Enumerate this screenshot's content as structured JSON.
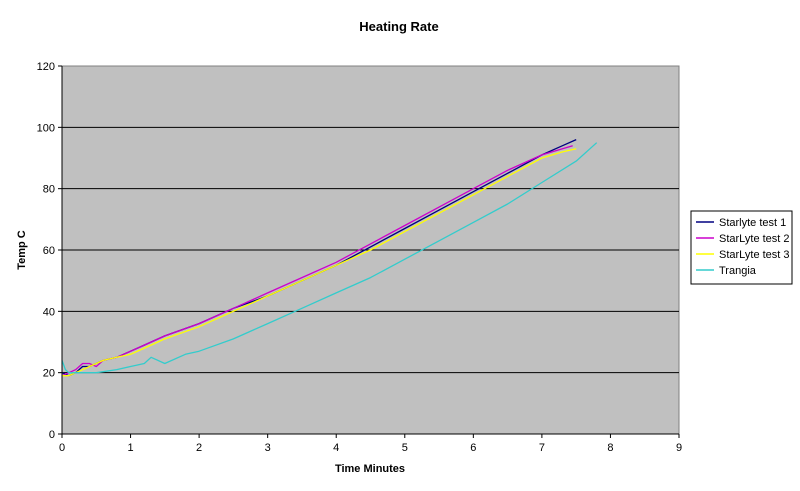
{
  "chart_data": {
    "type": "line",
    "title": "Heating Rate",
    "xlabel": "Time Minutes",
    "ylabel": "Temp C",
    "xlim": [
      0,
      9
    ],
    "ylim": [
      0,
      120
    ],
    "xticks": [
      0,
      1,
      2,
      3,
      4,
      5,
      6,
      7,
      8,
      9
    ],
    "yticks": [
      0,
      20,
      40,
      60,
      80,
      100,
      120
    ],
    "grid": "horizontal",
    "plot_background": "#c0c0c0",
    "legend_position": "right",
    "series": [
      {
        "name": "Starlyte test 1",
        "color": "#000080",
        "x": [
          0,
          0.1,
          0.2,
          0.3,
          0.4,
          0.5,
          0.6,
          0.8,
          1.0,
          1.2,
          1.5,
          2.0,
          2.5,
          3.0,
          3.5,
          4.0,
          4.5,
          5.0,
          5.5,
          6.0,
          6.5,
          7.0,
          7.3,
          7.5
        ],
        "y": [
          20,
          19,
          20,
          22,
          22,
          23,
          24,
          25,
          27,
          29,
          32,
          36,
          41,
          45,
          50,
          55,
          61,
          67,
          73,
          79,
          85,
          91,
          94,
          96
        ]
      },
      {
        "name": "StarLyte test 2",
        "color": "#cc00cc",
        "x": [
          0,
          0.1,
          0.2,
          0.3,
          0.4,
          0.5,
          0.6,
          0.8,
          1.0,
          1.2,
          1.5,
          2.0,
          2.5,
          3.0,
          3.5,
          4.0,
          4.5,
          5.0,
          5.5,
          6.0,
          6.5,
          7.0,
          7.3,
          7.45
        ],
        "y": [
          19,
          20,
          21,
          23,
          23,
          22,
          24,
          25,
          27,
          29,
          32,
          36,
          41,
          46,
          51,
          56,
          62,
          68,
          74,
          80,
          86,
          91,
          93,
          94
        ]
      },
      {
        "name": "StarLyte test 3",
        "color": "#ffff00",
        "x": [
          0,
          0.1,
          0.2,
          0.3,
          0.4,
          0.5,
          0.6,
          0.8,
          1.0,
          1.2,
          1.5,
          2.0,
          2.5,
          3.0,
          3.5,
          4.0,
          4.5,
          5.0,
          5.5,
          6.0,
          6.5,
          7.0,
          7.3,
          7.5
        ],
        "y": [
          19,
          19,
          20,
          21,
          22,
          23,
          24,
          25,
          26,
          28,
          31,
          35,
          40,
          45,
          50,
          55,
          60,
          66,
          72,
          78,
          84,
          90,
          92,
          93
        ]
      },
      {
        "name": "Trangia",
        "color": "#33cccc",
        "x": [
          0,
          0.05,
          0.1,
          0.2,
          0.3,
          0.5,
          0.8,
          1.0,
          1.2,
          1.3,
          1.5,
          1.8,
          2.0,
          2.5,
          3.0,
          3.5,
          4.0,
          4.5,
          5.0,
          5.5,
          6.0,
          6.5,
          7.0,
          7.5,
          7.8
        ],
        "y": [
          24,
          21,
          20,
          20,
          20,
          20,
          21,
          22,
          23,
          25,
          23,
          26,
          27,
          31,
          36,
          41,
          46,
          51,
          57,
          63,
          69,
          75,
          82,
          89,
          95
        ]
      }
    ]
  }
}
